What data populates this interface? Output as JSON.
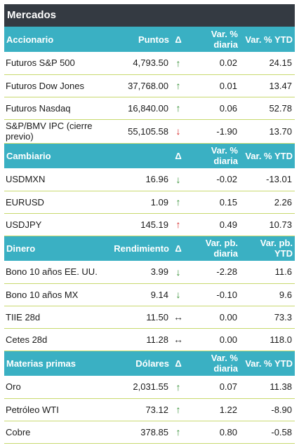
{
  "title": "Mercados",
  "sections": [
    {
      "headers": [
        "Accionario",
        "Puntos",
        "Δ",
        "Var. % diaria",
        "Var. % YTD"
      ],
      "rows": [
        {
          "name": "Futuros S&P 500",
          "value": "4,793.50",
          "arrow": "↑",
          "dir": "up",
          "daily": "0.02",
          "ytd": "24.15"
        },
        {
          "name": "Futuros Dow Jones",
          "value": "37,768.00",
          "arrow": "↑",
          "dir": "up",
          "daily": "0.01",
          "ytd": "13.47"
        },
        {
          "name": "Futuros Nasdaq",
          "value": "16,840.00",
          "arrow": "↑",
          "dir": "up",
          "daily": "0.06",
          "ytd": "52.78"
        },
        {
          "name": "S&P/BMV IPC (cierre previo)",
          "value": "55,105.58",
          "arrow": "↓",
          "dir": "down-red",
          "daily": "-1.90",
          "ytd": "13.70"
        }
      ]
    },
    {
      "headers": [
        "Cambiario",
        "",
        "Δ",
        "Var. % diaria",
        "Var. % YTD"
      ],
      "rows": [
        {
          "name": "USDMXN",
          "value": "16.96",
          "arrow": "↓",
          "dir": "down-green",
          "daily": "-0.02",
          "ytd": "-13.01"
        },
        {
          "name": "EURUSD",
          "value": "1.09",
          "arrow": "↑",
          "dir": "up",
          "daily": "0.15",
          "ytd": "2.26"
        },
        {
          "name": "USDJPY",
          "value": "145.19",
          "arrow": "↑",
          "dir": "up-red",
          "daily": "0.49",
          "ytd": "10.73"
        }
      ]
    },
    {
      "headers": [
        "Dinero",
        "Rendimiento",
        "Δ",
        "Var. pb. diaria",
        "Var. pb. YTD"
      ],
      "rows": [
        {
          "name": "Bono 10 años EE. UU.",
          "value": "3.99",
          "arrow": "↓",
          "dir": "down-green",
          "daily": "-2.28",
          "ytd": "11.6"
        },
        {
          "name": "Bono 10 años MX",
          "value": "9.14",
          "arrow": "↓",
          "dir": "down-green",
          "daily": "-0.10",
          "ytd": "9.6"
        },
        {
          "name": "TIIE 28d",
          "value": "11.50",
          "arrow": "↔",
          "dir": "flat",
          "daily": "0.00",
          "ytd": "73.3"
        },
        {
          "name": "Cetes 28d",
          "value": "11.28",
          "arrow": "↔",
          "dir": "flat",
          "daily": "0.00",
          "ytd": "118.0"
        }
      ]
    },
    {
      "headers": [
        "Materias primas",
        "Dólares",
        "Δ",
        "Var. % diaria",
        "Var. % YTD"
      ],
      "rows": [
        {
          "name": "Oro",
          "value": "2,031.55",
          "arrow": "↑",
          "dir": "up",
          "daily": "0.07",
          "ytd": "11.38"
        },
        {
          "name": "Petróleo WTI",
          "value": "73.12",
          "arrow": "↑",
          "dir": "up",
          "daily": "1.22",
          "ytd": "-8.90"
        },
        {
          "name": "Cobre",
          "value": "378.85",
          "arrow": "↑",
          "dir": "up",
          "daily": "0.80",
          "ytd": "-0.58"
        }
      ]
    }
  ],
  "colors": {
    "title_bg": "#343a42",
    "header_bg": "#3ab0c3",
    "row_rule": "#c8d96f",
    "up": "#2e8b2e",
    "down_red": "#d42020"
  }
}
